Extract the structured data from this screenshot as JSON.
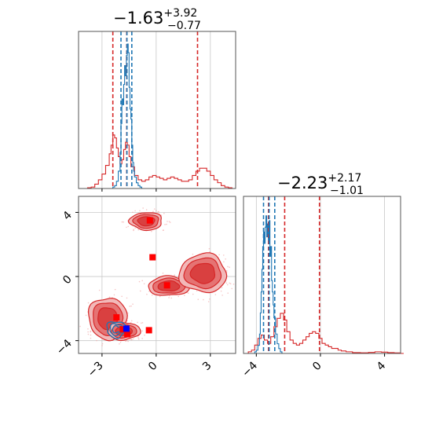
{
  "chart_data": [
    {
      "type": "corner-plot",
      "colors": {
        "red": "#d62728",
        "blue": "#1f77b4",
        "grid": "#c8c8c8",
        "axis": "#555555"
      },
      "titles": [
        {
          "value": "−1.63",
          "sup": "+3.92",
          "sub": "−0.77"
        },
        {
          "value": "−2.23",
          "sup": "+2.17",
          "sub": "−1.01"
        }
      ],
      "param_ranges": {
        "x1": [
          -4.3,
          4.4
        ],
        "x2": [
          -4.8,
          5.0
        ]
      },
      "x1_ticks": [
        -3,
        0,
        3
      ],
      "x1_tick_labels": [
        "−3",
        "0",
        "3"
      ],
      "x2_ticks": [
        -4,
        0,
        4
      ],
      "x2_tick_labels": [
        "−4",
        "0",
        "4"
      ],
      "hist_x1": {
        "red_quantiles": [
          -2.4,
          -1.63,
          2.29
        ],
        "blue_quantiles": [
          -1.95,
          -1.62,
          -1.35
        ],
        "red_bins": [
          [
            -4.3,
            0
          ],
          [
            -4.0,
            0
          ],
          [
            -3.8,
            0.005
          ],
          [
            -3.6,
            0.01
          ],
          [
            -3.4,
            0.03
          ],
          [
            -3.2,
            0.06
          ],
          [
            -3.0,
            0.1
          ],
          [
            -2.8,
            0.16
          ],
          [
            -2.6,
            0.24
          ],
          [
            -2.5,
            0.3
          ],
          [
            -2.4,
            0.37
          ],
          [
            -2.3,
            0.35
          ],
          [
            -2.2,
            0.28
          ],
          [
            -2.1,
            0.22
          ],
          [
            -2.0,
            0.17
          ],
          [
            -1.9,
            0.2
          ],
          [
            -1.8,
            0.27
          ],
          [
            -1.7,
            0.32
          ],
          [
            -1.6,
            0.3
          ],
          [
            -1.5,
            0.22
          ],
          [
            -1.4,
            0.15
          ],
          [
            -1.2,
            0.09
          ],
          [
            -1.0,
            0.06
          ],
          [
            -0.8,
            0.05
          ],
          [
            -0.6,
            0.06
          ],
          [
            -0.4,
            0.08
          ],
          [
            -0.2,
            0.09
          ],
          [
            0.0,
            0.08
          ],
          [
            0.2,
            0.07
          ],
          [
            0.4,
            0.06
          ],
          [
            0.6,
            0.07
          ],
          [
            0.8,
            0.08
          ],
          [
            1.0,
            0.07
          ],
          [
            1.2,
            0.06
          ],
          [
            1.4,
            0.05
          ],
          [
            1.6,
            0.05
          ],
          [
            1.8,
            0.06
          ],
          [
            2.0,
            0.09
          ],
          [
            2.2,
            0.12
          ],
          [
            2.4,
            0.14
          ],
          [
            2.6,
            0.14
          ],
          [
            2.8,
            0.12
          ],
          [
            3.0,
            0.09
          ],
          [
            3.2,
            0.06
          ],
          [
            3.4,
            0.04
          ],
          [
            3.6,
            0.02
          ],
          [
            3.8,
            0.01
          ],
          [
            4.0,
            0.005
          ],
          [
            4.2,
            0
          ]
        ],
        "blue_bins": [
          [
            -2.5,
            0
          ],
          [
            -2.4,
            0.01
          ],
          [
            -2.3,
            0.02
          ],
          [
            -2.2,
            0.05
          ],
          [
            -2.1,
            0.12
          ],
          [
            -2.0,
            0.25
          ],
          [
            -1.95,
            0.45
          ],
          [
            -1.9,
            0.62
          ],
          [
            -1.85,
            0.58
          ],
          [
            -1.8,
            0.72
          ],
          [
            -1.75,
            0.85
          ],
          [
            -1.7,
            0.78
          ],
          [
            -1.65,
            0.92
          ],
          [
            -1.6,
            1.0
          ],
          [
            -1.55,
            0.94
          ],
          [
            -1.5,
            0.7
          ],
          [
            -1.45,
            0.55
          ],
          [
            -1.4,
            0.48
          ],
          [
            -1.35,
            0.3
          ],
          [
            -1.3,
            0.18
          ],
          [
            -1.25,
            0.12
          ],
          [
            -1.2,
            0.08
          ],
          [
            -1.1,
            0.04
          ],
          [
            -1.0,
            0.02
          ],
          [
            -0.9,
            0.01
          ],
          [
            -0.8,
            0
          ]
        ]
      },
      "hist_x2": {
        "red_quantiles": [
          -3.24,
          -2.23,
          -0.06
        ],
        "blue_quantiles": [
          -3.55,
          -3.2,
          -2.85
        ],
        "red_bins": [
          [
            -4.8,
            0
          ],
          [
            -4.5,
            0.01
          ],
          [
            -4.3,
            0.02
          ],
          [
            -4.1,
            0.05
          ],
          [
            -3.9,
            0.09
          ],
          [
            -3.7,
            0.11
          ],
          [
            -3.5,
            0.08
          ],
          [
            -3.3,
            0.06
          ],
          [
            -3.1,
            0.1
          ],
          [
            -2.9,
            0.16
          ],
          [
            -2.7,
            0.21
          ],
          [
            -2.5,
            0.24
          ],
          [
            -2.3,
            0.2
          ],
          [
            -2.1,
            0.13
          ],
          [
            -1.9,
            0.08
          ],
          [
            -1.7,
            0.06
          ],
          [
            -1.5,
            0.05
          ],
          [
            -1.3,
            0.06
          ],
          [
            -1.1,
            0.08
          ],
          [
            -0.9,
            0.1
          ],
          [
            -0.7,
            0.12
          ],
          [
            -0.5,
            0.13
          ],
          [
            -0.3,
            0.12
          ],
          [
            -0.1,
            0.09
          ],
          [
            0.1,
            0.06
          ],
          [
            0.3,
            0.05
          ],
          [
            0.5,
            0.04
          ],
          [
            0.7,
            0.03
          ],
          [
            0.9,
            0.03
          ],
          [
            1.1,
            0.02
          ],
          [
            1.3,
            0.015
          ],
          [
            1.6,
            0.01
          ],
          [
            2.0,
            0.005
          ],
          [
            2.5,
            0.004
          ],
          [
            3.0,
            0.006
          ],
          [
            3.4,
            0.01
          ],
          [
            3.8,
            0.008
          ],
          [
            4.2,
            0.005
          ],
          [
            4.6,
            0.003
          ],
          [
            5.0,
            0
          ]
        ],
        "blue_bins": [
          [
            -4.2,
            0
          ],
          [
            -4.1,
            0.01
          ],
          [
            -4.0,
            0.02
          ],
          [
            -3.9,
            0.05
          ],
          [
            -3.8,
            0.12
          ],
          [
            -3.75,
            0.25
          ],
          [
            -3.7,
            0.38
          ],
          [
            -3.65,
            0.52
          ],
          [
            -3.6,
            0.66
          ],
          [
            -3.55,
            0.75
          ],
          [
            -3.5,
            0.68
          ],
          [
            -3.45,
            0.78
          ],
          [
            -3.4,
            0.85
          ],
          [
            -3.35,
            0.72
          ],
          [
            -3.3,
            0.8
          ],
          [
            -3.25,
            0.7
          ],
          [
            -3.2,
            0.82
          ],
          [
            -3.15,
            0.6
          ],
          [
            -3.1,
            0.66
          ],
          [
            -3.05,
            0.45
          ],
          [
            -3.0,
            0.38
          ],
          [
            -2.95,
            0.3
          ],
          [
            -2.9,
            0.22
          ],
          [
            -2.8,
            0.12
          ],
          [
            -2.7,
            0.06
          ],
          [
            -2.6,
            0.03
          ],
          [
            -2.5,
            0.01
          ],
          [
            -2.4,
            0
          ]
        ]
      },
      "joint": {
        "red_modes": [
          {
            "cx": -2.7,
            "cy": -2.6,
            "rx": 1.05,
            "ry": 1.3
          },
          {
            "cx": -1.8,
            "cy": -3.4,
            "rx": 0.9,
            "ry": 0.55
          },
          {
            "cx": 0.7,
            "cy": -0.6,
            "rx": 1.15,
            "ry": 0.6
          },
          {
            "cx": 2.6,
            "cy": 0.2,
            "rx": 1.3,
            "ry": 1.2
          },
          {
            "cx": -0.55,
            "cy": 3.45,
            "rx": 0.9,
            "ry": 0.55
          }
        ],
        "blue_modes": [
          {
            "cx": -2.2,
            "cy": -3.3,
            "rx": 0.55,
            "ry": 0.5
          }
        ],
        "red_markers": [
          {
            "x": -0.35,
            "y": 3.5
          },
          {
            "x": -0.2,
            "y": 1.2
          },
          {
            "x": 0.6,
            "y": -0.55
          },
          {
            "x": -2.2,
            "y": -2.55
          },
          {
            "x": -0.4,
            "y": -3.35
          },
          {
            "x": -1.85,
            "y": -3.3
          },
          {
            "x": -1.6,
            "y": -3.6
          }
        ],
        "blue_markers": [
          {
            "x": -1.65,
            "y": -3.25
          }
        ]
      }
    }
  ]
}
